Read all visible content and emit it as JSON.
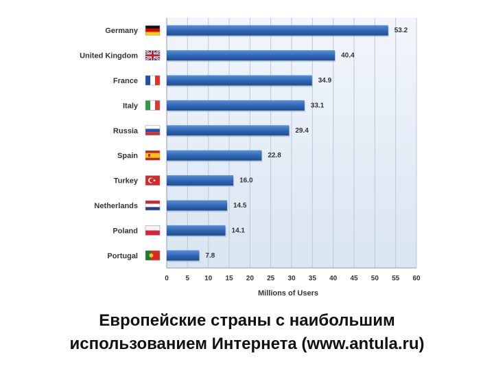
{
  "chart_data": {
    "type": "bar",
    "orientation": "horizontal",
    "categories": [
      "Germany",
      "United Kingdom",
      "France",
      "Italy",
      "Russia",
      "Spain",
      "Turkey",
      "Netherlands",
      "Poland",
      "Portugal"
    ],
    "values": [
      53.2,
      40.4,
      34.9,
      33.1,
      29.4,
      22.8,
      16.0,
      14.5,
      14.1,
      7.8
    ],
    "value_labels": [
      "53.2",
      "40.4",
      "34.9",
      "33.1",
      "29.4",
      "22.8",
      "16.0",
      "14.5",
      "14.1",
      "7.8"
    ],
    "flag_icons": [
      "germany-flag-icon",
      "united-kingdom-flag-icon",
      "france-flag-icon",
      "italy-flag-icon",
      "russia-flag-icon",
      "spain-flag-icon",
      "turkey-flag-icon",
      "netherlands-flag-icon",
      "poland-flag-icon",
      "portugal-flag-icon"
    ],
    "xlabel": "Millions of Users",
    "ylabel": "",
    "xlim": [
      0,
      60
    ],
    "xticks": [
      "0",
      "5",
      "10",
      "15",
      "20",
      "25",
      "30",
      "35",
      "40",
      "45",
      "50",
      "55",
      "60"
    ],
    "grid": true,
    "legend": "none",
    "colors": {
      "bar": "#2e64b0",
      "bar_light": "#5b8fd6",
      "plot_bg_top": "#f2f6fb",
      "plot_bg_bottom": "#d9e5f2",
      "grid": "#b8c8dc"
    }
  },
  "caption": {
    "line1": "Европейские страны с наибольшим",
    "line2": "использованием Интернета (www.antula.ru)"
  }
}
